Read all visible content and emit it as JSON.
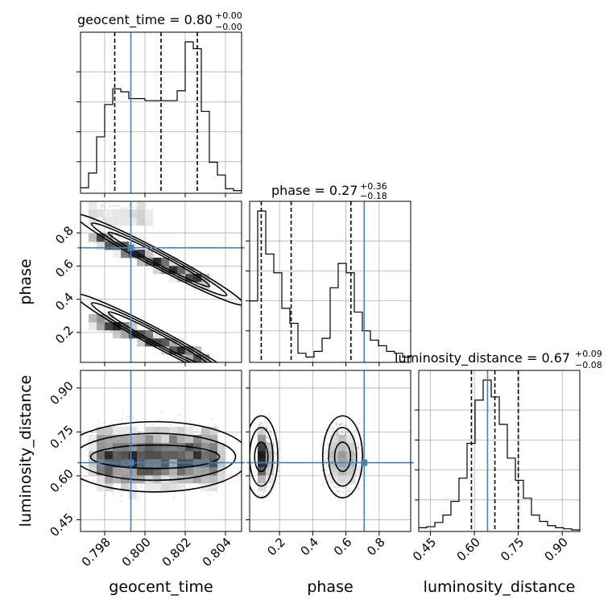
{
  "chart_data": {
    "type": "corner",
    "parameters": [
      "geocent_time",
      "phase",
      "luminosity_distance"
    ],
    "axis_labels": {
      "geocent_time": "geocent_time",
      "phase": "phase",
      "luminosity_distance": "luminosity_distance"
    },
    "ranges": {
      "geocent_time": [
        0.7968,
        0.8048
      ],
      "phase": [
        0.02,
        0.99
      ],
      "luminosity_distance": [
        0.41,
        0.96
      ]
    },
    "ticks": {
      "geocent_time": {
        "values": [
          0.798,
          0.8,
          0.802,
          0.804
        ],
        "labels": [
          "0.798",
          "0.800",
          "0.802",
          "0.804"
        ]
      },
      "phase": {
        "values": [
          0.2,
          0.4,
          0.6,
          0.8
        ],
        "labels": [
          "0.2",
          "0.4",
          "0.6",
          "0.8"
        ]
      },
      "luminosity_distance": {
        "values": [
          0.45,
          0.6,
          0.75,
          0.9
        ],
        "labels": [
          "0.45",
          "0.60",
          "0.75",
          "0.90"
        ]
      }
    },
    "truths": {
      "geocent_time": 0.7993,
      "phase": 0.71,
      "luminosity_distance": 0.645
    },
    "titles": [
      {
        "param": "geocent_time",
        "prefix": "geocent_time = 0.80",
        "plus": "+0.00",
        "minus": "−0.00"
      },
      {
        "param": "phase",
        "prefix": "phase = 0.27",
        "plus": "+0.36",
        "minus": "−0.18"
      },
      {
        "param": "luminosity_distance",
        "prefix": "luminosity_distance = 0.67",
        "plus": "+0.09",
        "minus": "−0.08"
      }
    ],
    "histograms": {
      "geocent_time": {
        "bin_start": 0.7968,
        "bin_width": 0.0004,
        "counts": [
          4,
          19,
          56,
          89,
          105,
          102,
          95,
          95,
          93,
          93,
          93,
          93,
          103,
          153,
          146,
          82,
          30,
          17,
          3,
          1
        ],
        "quantiles": [
          0.7985,
          0.8008,
          0.8026
        ]
      },
      "phase": {
        "bin_start": 0.02,
        "bin_width": 0.0485,
        "counts": [
          32,
          80,
          57,
          47,
          28,
          20,
          4,
          2,
          5,
          12,
          39,
          52,
          47,
          26,
          16,
          11,
          8,
          5,
          4,
          2
        ],
        "quantiles": [
          0.09,
          0.27,
          0.63
        ]
      },
      "luminosity_distance": {
        "bin_start": 0.41,
        "bin_width": 0.0275,
        "counts": [
          2,
          3,
          7,
          14,
          27,
          49,
          82,
          123,
          142,
          126,
          100,
          68,
          47,
          30,
          14,
          8,
          4,
          2,
          1,
          0
        ],
        "quantiles": [
          0.59,
          0.67,
          0.75
        ]
      }
    },
    "joint_shapes": {
      "geocent_time_vs_phase": "two diagonal bands (upper band ~0.80→0.50, lower band ~0.28→0.02)",
      "geocent_time_vs_luminosity_distance": "broad band centred near 0.65",
      "phase_vs_luminosity_distance": "two blobs near phase 0.10 and 0.57, distance ~0.65"
    }
  }
}
